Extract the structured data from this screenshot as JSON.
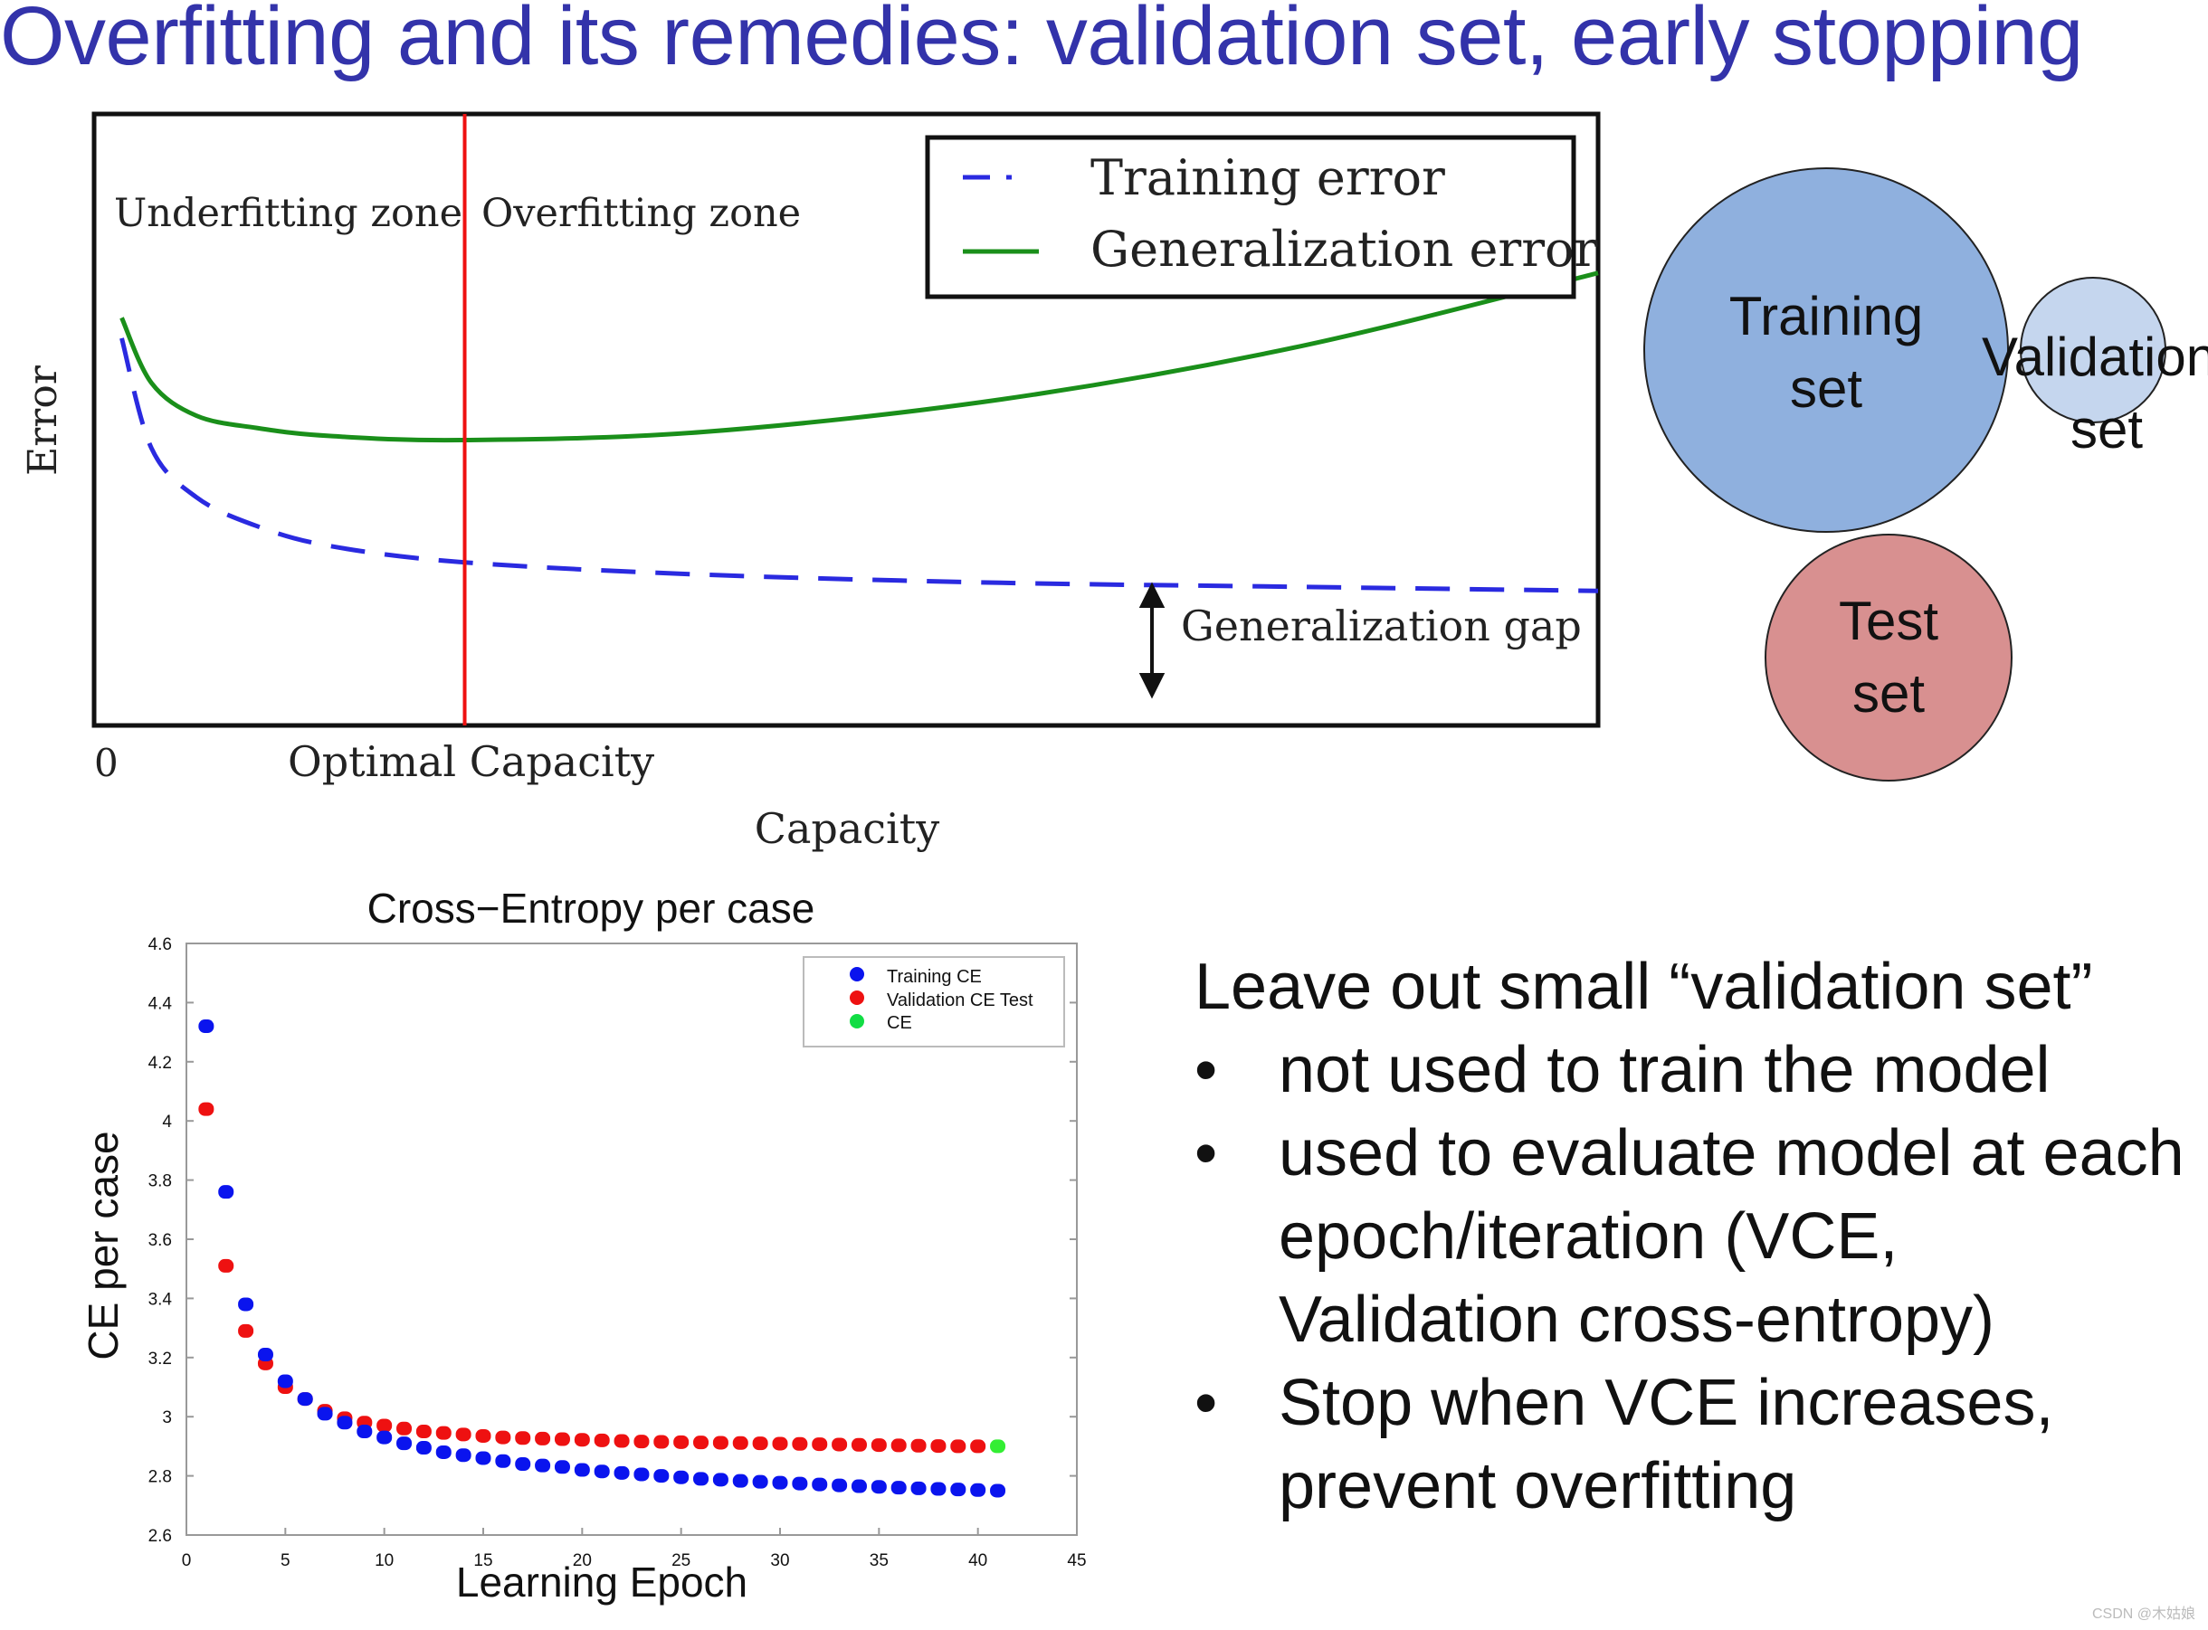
{
  "slide": {
    "title": "Overfitting and its remedies: validation set, early stopping",
    "watermark": "CSDN @木姑娘"
  },
  "capacity_chart": {
    "zone_labels": {
      "underfitting": "Underfitting zone",
      "overfitting": "Overfitting zone"
    },
    "legend": {
      "training": "Training error",
      "generalization": "Generalization error"
    },
    "gap_label": "Generalization gap",
    "ylabel": "Error",
    "xlabel": "Capacity",
    "tick_zero": "0",
    "tick_optimal": "Optimal Capacity",
    "colors": {
      "training": "#2a2ae0",
      "generalization": "#1a8f1a",
      "optimal_line": "#ee1111"
    }
  },
  "venn": {
    "training": {
      "line1": "Training",
      "line2": "set",
      "color": "#8fb0de"
    },
    "validation": {
      "line1": "Validation",
      "line2": "set",
      "color": "#c5d6ee"
    },
    "test": {
      "line1": "Test",
      "line2": "set",
      "color": "#d89090"
    }
  },
  "text_block": {
    "lead": "Leave out small “validation set”",
    "bullet_char": "•",
    "bullets": [
      "not used to train the model",
      "used to evaluate model at each epoch/iteration (VCE, Validation cross-entropy)",
      "Stop when VCE increases, prevent overfitting"
    ]
  },
  "chart_data": [
    {
      "type": "line",
      "title": "",
      "xlabel": "Capacity",
      "ylabel": "Error",
      "x": [
        0.01,
        0.03,
        0.06,
        0.1,
        0.15,
        0.24,
        0.4,
        0.6,
        0.8,
        1.0
      ],
      "series": [
        {
          "name": "Training error",
          "values": [
            0.95,
            0.68,
            0.56,
            0.49,
            0.44,
            0.4,
            0.37,
            0.35,
            0.34,
            0.33
          ]
        },
        {
          "name": "Generalization error",
          "values": [
            1.0,
            0.84,
            0.76,
            0.73,
            0.71,
            0.7,
            0.72,
            0.8,
            0.93,
            1.11
          ]
        }
      ],
      "annotations": [
        "Underfitting zone",
        "Overfitting zone",
        "Generalization gap",
        "Optimal Capacity"
      ],
      "optimal_capacity_x": 0.24,
      "ylim": [
        0,
        1.5
      ],
      "xlim": [
        0,
        1.0
      ]
    },
    {
      "type": "scatter",
      "title": "Cross−Entropy per case",
      "xlabel": "Learning Epoch",
      "ylabel": "CE per case",
      "xlim": [
        0,
        45
      ],
      "ylim": [
        2.6,
        4.6
      ],
      "xticks": [
        "0",
        "5",
        "10",
        "15",
        "20",
        "25",
        "30",
        "35",
        "40",
        "45"
      ],
      "yticks": [
        "2.6",
        "2.8",
        "3",
        "3.2",
        "3.4",
        "3.6",
        "3.8",
        "4",
        "4.2",
        "4.4",
        "4.6"
      ],
      "legend": [
        "Training CE",
        "Validation CE",
        "Test CE"
      ],
      "legend_lines": [
        "Training CE",
        "Validation CE Test",
        "CE"
      ],
      "colors": {
        "training": "#0a14ee",
        "validation": "#ee1111",
        "test": "#33ee33",
        "legend_test": "#11dd44"
      },
      "series": [
        {
          "name": "Training CE",
          "x": [
            1,
            2,
            3,
            4,
            5,
            6,
            7,
            8,
            9,
            10,
            11,
            12,
            13,
            14,
            15,
            16,
            17,
            18,
            19,
            20,
            21,
            22,
            23,
            24,
            25,
            26,
            27,
            28,
            29,
            30,
            31,
            32,
            33,
            34,
            35,
            36,
            37,
            38,
            39,
            40,
            41
          ],
          "values": [
            4.32,
            3.76,
            3.38,
            3.21,
            3.12,
            3.06,
            3.01,
            2.98,
            2.95,
            2.93,
            2.91,
            2.895,
            2.88,
            2.87,
            2.86,
            2.85,
            2.84,
            2.835,
            2.83,
            2.82,
            2.815,
            2.81,
            2.805,
            2.8,
            2.795,
            2.79,
            2.787,
            2.783,
            2.78,
            2.777,
            2.774,
            2.771,
            2.768,
            2.765,
            2.763,
            2.76,
            2.758,
            2.756,
            2.754,
            2.752,
            2.75
          ]
        },
        {
          "name": "Validation CE",
          "x": [
            1,
            2,
            3,
            4,
            5,
            6,
            7,
            8,
            9,
            10,
            11,
            12,
            13,
            14,
            15,
            16,
            17,
            18,
            19,
            20,
            21,
            22,
            23,
            24,
            25,
            26,
            27,
            28,
            29,
            30,
            31,
            32,
            33,
            34,
            35,
            36,
            37,
            38,
            39,
            40
          ],
          "values": [
            4.04,
            3.51,
            3.29,
            3.18,
            3.1,
            3.06,
            3.02,
            2.995,
            2.98,
            2.97,
            2.96,
            2.95,
            2.945,
            2.94,
            2.935,
            2.93,
            2.928,
            2.926,
            2.924,
            2.922,
            2.92,
            2.918,
            2.916,
            2.915,
            2.914,
            2.913,
            2.912,
            2.911,
            2.91,
            2.909,
            2.908,
            2.907,
            2.906,
            2.905,
            2.904,
            2.903,
            2.902,
            2.901,
            2.9,
            2.9
          ]
        },
        {
          "name": "Test CE",
          "x": [
            41
          ],
          "values": [
            2.9
          ]
        }
      ]
    }
  ]
}
